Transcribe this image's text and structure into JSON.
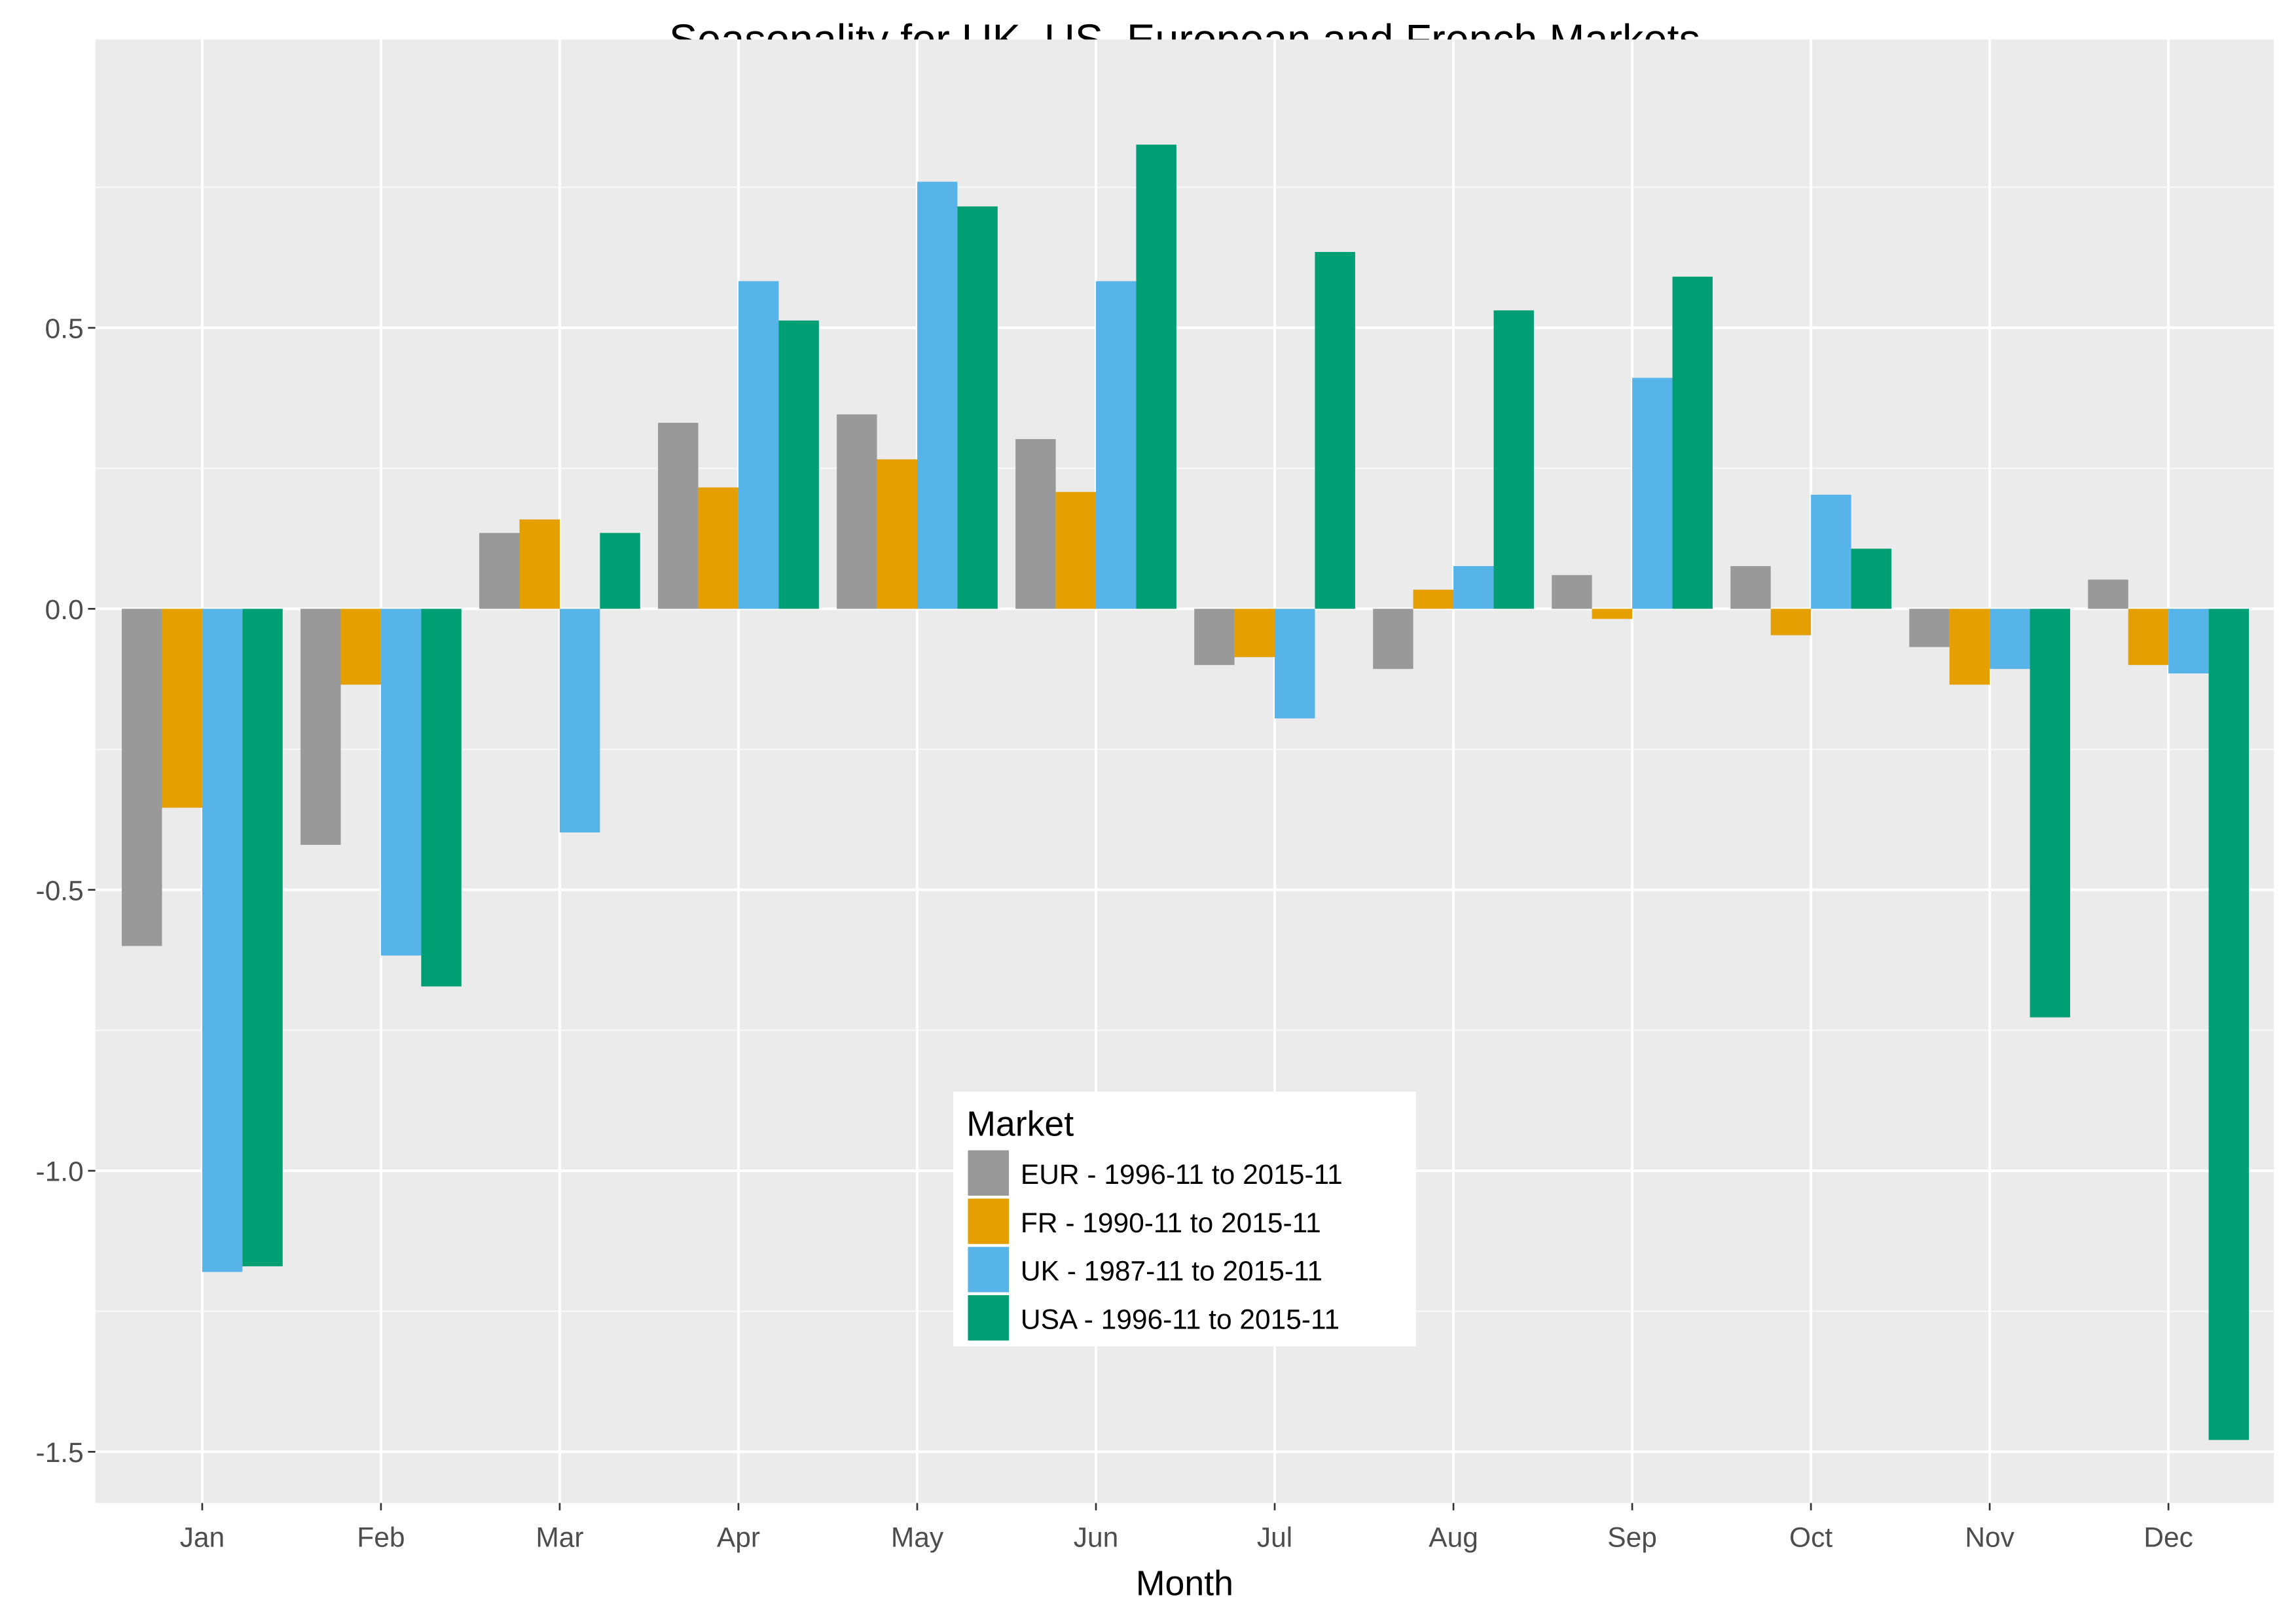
{
  "chart_data": {
    "type": "bar",
    "title": "Seasonality for UK, US, European and French Markets",
    "xlabel": "Month",
    "ylabel": "",
    "categories": [
      "Jan",
      "Feb",
      "Mar",
      "Apr",
      "May",
      "Jun",
      "Jul",
      "Aug",
      "Sep",
      "Oct",
      "Nov",
      "Dec"
    ],
    "ylim": [
      -1.6,
      0.92
    ],
    "yticks": [
      -1.5,
      -1.0,
      -0.5,
      0.0,
      0.5
    ],
    "ytick_labels": [
      "-1.5",
      "-1.0",
      "-0.5",
      "0.0",
      "0.5"
    ],
    "grid": true,
    "legend": {
      "title": "Market",
      "placement": "bottom-center inside"
    },
    "series": [
      {
        "name": "EUR - 1996-11 to 2015-11",
        "color": "#999999",
        "values": [
          -0.6,
          -0.42,
          0.135,
          0.331,
          0.346,
          0.302,
          -0.1,
          -0.107,
          0.06,
          0.076,
          -0.068,
          0.052
        ]
      },
      {
        "name": "FR - 1990-11 to 2015-11",
        "color": "#E69F00",
        "values": [
          -0.354,
          -0.135,
          0.159,
          0.216,
          0.266,
          0.208,
          -0.086,
          0.034,
          -0.018,
          -0.047,
          -0.135,
          -0.1
        ]
      },
      {
        "name": "UK - 1987-11 to 2015-11",
        "color": "#56B4E9",
        "values": [
          -1.18,
          -0.617,
          -0.398,
          0.583,
          0.76,
          0.583,
          -0.195,
          0.076,
          0.411,
          0.203,
          -0.107,
          -0.115
        ]
      },
      {
        "name": "USA - 1996-11 to 2015-11",
        "color": "#009E73",
        "values": [
          -1.17,
          -0.672,
          0.135,
          0.513,
          0.716,
          0.826,
          0.635,
          0.531,
          0.591,
          0.107,
          -0.727,
          -1.479
        ]
      }
    ]
  }
}
